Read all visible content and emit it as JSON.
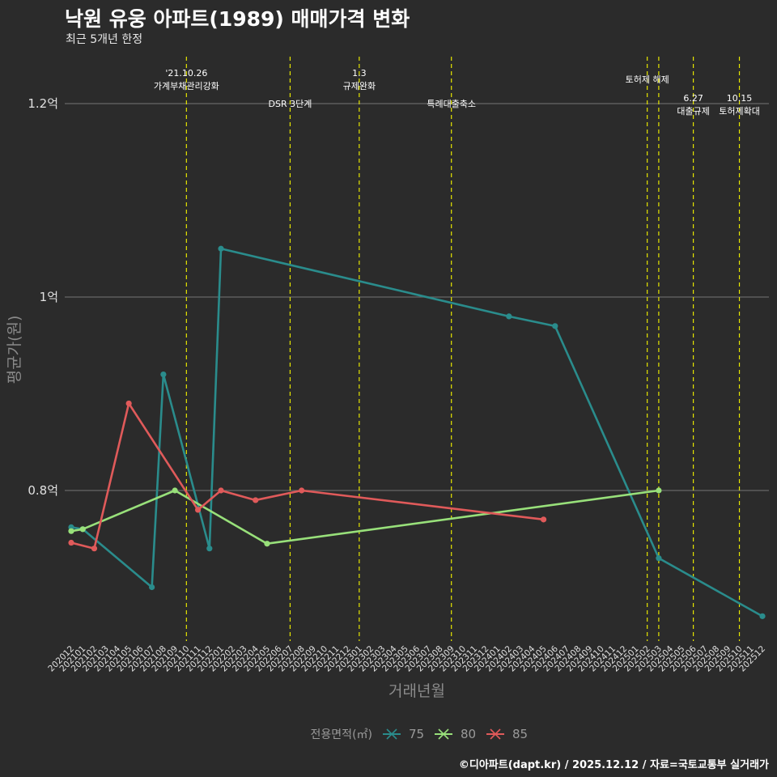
{
  "header": {
    "title": "낙원 유웅 아파트(1989) 매매가격 변화",
    "subtitle": "최근 5개년 한정"
  },
  "footer": {
    "caption": "©디아파트(dapt.kr) / 2025.12.12 / 자료=국토교통부 실거래가"
  },
  "colors": {
    "background": "#2b2b2b",
    "grid": "#666666",
    "event_line": "#e6e600"
  },
  "chart_data": {
    "type": "line",
    "title": "낙원 유웅 아파트(1989) 매매가격 변화",
    "subtitle": "최근 5개년 한정",
    "xlabel": "거래년월",
    "ylabel": "평균가(원)",
    "ylim": [
      0.66,
      1.25
    ],
    "yticks": [
      {
        "value": 0.8,
        "label": "0.8억"
      },
      {
        "value": 1.0,
        "label": "1억"
      },
      {
        "value": 1.2,
        "label": "1.2억"
      }
    ],
    "categories": [
      "202012",
      "202101",
      "202102",
      "202103",
      "202104",
      "202105",
      "202106",
      "202107",
      "202108",
      "202109",
      "202110",
      "202111",
      "202112",
      "202201",
      "202202",
      "202203",
      "202204",
      "202205",
      "202206",
      "202207",
      "202208",
      "202209",
      "202210",
      "202211",
      "202212",
      "202301",
      "202302",
      "202303",
      "202304",
      "202305",
      "202306",
      "202307",
      "202308",
      "202309",
      "202310",
      "202311",
      "202312",
      "202401",
      "202402",
      "202403",
      "202404",
      "202405",
      "202406",
      "202407",
      "202408",
      "202409",
      "202410",
      "202411",
      "202412",
      "202501",
      "202502",
      "202503",
      "202504",
      "202505",
      "202506",
      "202507",
      "202508",
      "202509",
      "202510",
      "202511",
      "202512"
    ],
    "legend": {
      "title": "전용면적(㎡)",
      "position": "bottom"
    },
    "series": [
      {
        "name": "75",
        "color": "#2a8c8c",
        "points": [
          {
            "x": "202012",
            "y": 0.762
          },
          {
            "x": "202101",
            "y": 0.76
          },
          {
            "x": "202107",
            "y": 0.7
          },
          {
            "x": "202108",
            "y": 0.92
          },
          {
            "x": "202112",
            "y": 0.74
          },
          {
            "x": "202201",
            "y": 1.05
          },
          {
            "x": "202402",
            "y": 0.98
          },
          {
            "x": "202406",
            "y": 0.97
          },
          {
            "x": "202503",
            "y": 0.73
          },
          {
            "x": "202512",
            "y": 0.67
          }
        ]
      },
      {
        "name": "80",
        "color": "#98e07a",
        "points": [
          {
            "x": "202012",
            "y": 0.758
          },
          {
            "x": "202101",
            "y": 0.76
          },
          {
            "x": "202109",
            "y": 0.8
          },
          {
            "x": "202205",
            "y": 0.745
          },
          {
            "x": "202503",
            "y": 0.8
          }
        ]
      },
      {
        "name": "85",
        "color": "#e05a5a",
        "points": [
          {
            "x": "202012",
            "y": 0.746
          },
          {
            "x": "202102",
            "y": 0.74
          },
          {
            "x": "202105",
            "y": 0.89
          },
          {
            "x": "202111",
            "y": 0.78
          },
          {
            "x": "202201",
            "y": 0.8
          },
          {
            "x": "202204",
            "y": 0.79
          },
          {
            "x": "202208",
            "y": 0.8
          },
          {
            "x": "202405",
            "y": 0.77
          }
        ]
      }
    ],
    "events": [
      {
        "x": "202110",
        "lines": [
          "'21.10.26",
          "가계부채관리강화"
        ],
        "level": "high"
      },
      {
        "x": "202207",
        "lines": [
          "DSR 3단계"
        ],
        "level": "mid"
      },
      {
        "x": "202301",
        "lines": [
          "1.3",
          "규제완화"
        ],
        "level": "high"
      },
      {
        "x": "202309",
        "lines": [
          "특례대출축소"
        ],
        "level": "mid"
      },
      {
        "x": "202502",
        "lines": [
          "토허제 해제"
        ],
        "level": "highsingle"
      },
      {
        "x": "202503",
        "lines": [],
        "level": "none"
      },
      {
        "x": "202506",
        "lines": [
          "6.27",
          "대출규제"
        ],
        "level": "low"
      },
      {
        "x": "202510",
        "lines": [
          "10.15",
          "토허제확대"
        ],
        "level": "low"
      }
    ]
  }
}
